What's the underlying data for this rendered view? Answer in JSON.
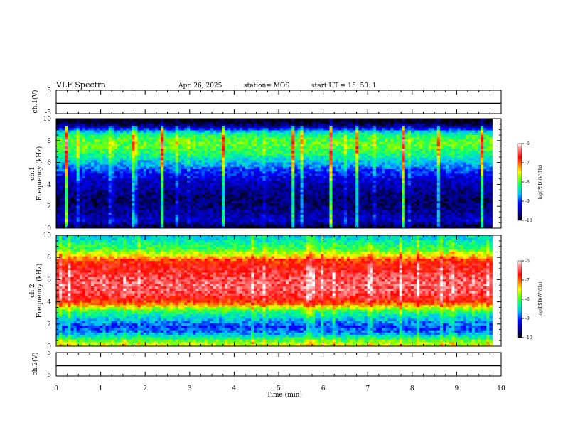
{
  "header": {
    "title": "VLF Spectra",
    "date": "Apr. 26, 2025",
    "station": "station= MOS",
    "start": "start  UT  =   15: 50: 1"
  },
  "colors": {
    "scale": [
      "#000000",
      "#00008b",
      "#0000ff",
      "#00c0ff",
      "#00ff80",
      "#80ff00",
      "#ffff00",
      "#ff8000",
      "#ff0000",
      "#ff8080",
      "#ffffff"
    ]
  },
  "chart_data": [
    {
      "type": "line",
      "ylabel": "ch.1(V)",
      "ylim": [
        -5,
        5
      ],
      "yticks": [
        5,
        -5
      ],
      "series_y": 0,
      "xlim": [
        0,
        10
      ]
    },
    {
      "type": "heatmap",
      "ylabel": "ch.1\nFrequency (kHz)",
      "ylabel_top": "ch.1",
      "ylabel_main": "Frequency (kHz)",
      "ylim": [
        0,
        10
      ],
      "yticks": [
        0,
        2,
        4,
        6,
        8,
        10
      ],
      "xlim": [
        0,
        10
      ],
      "data_end_min": 9.8,
      "profile_khz": [
        0.25,
        0.75,
        1.25,
        1.75,
        2.25,
        2.75,
        3.25,
        3.75,
        4.25,
        4.75,
        5.25,
        5.75,
        6.25,
        6.75,
        7.25,
        7.75,
        8.25,
        8.75,
        9.25,
        9.75
      ],
      "profile_level": [
        -9.8,
        -9.3,
        -9.5,
        -9.6,
        -9.7,
        -9.7,
        -9.6,
        -9.5,
        -9.4,
        -9.2,
        -9.0,
        -8.7,
        -8.5,
        -8.2,
        -8.0,
        -7.9,
        -8.0,
        -8.4,
        -9.4,
        -10.0
      ],
      "colorbar": {
        "label": "log(PSD)(V²/Hz)",
        "range": [
          -10,
          -6
        ],
        "ticks": [
          -6,
          -7,
          -8,
          -9,
          -10
        ]
      }
    },
    {
      "type": "heatmap",
      "ylabel": "ch.2\nFrequency (kHz)",
      "ylabel_top": "ch.2",
      "ylabel_main": "Frequency (kHz)",
      "ylim": [
        0,
        10
      ],
      "yticks": [
        0,
        2,
        4,
        6,
        8,
        10
      ],
      "xlim": [
        0,
        10
      ],
      "data_end_min": 9.8,
      "profile_khz": [
        0.25,
        0.75,
        1.25,
        1.75,
        2.25,
        2.75,
        3.25,
        3.75,
        4.25,
        4.75,
        5.25,
        5.75,
        6.25,
        6.75,
        7.25,
        7.75,
        8.25,
        8.75,
        9.25,
        9.75
      ],
      "profile_level": [
        -7.6,
        -8.2,
        -8.8,
        -9.0,
        -8.7,
        -8.4,
        -8.0,
        -7.2,
        -6.7,
        -6.5,
        -6.4,
        -6.4,
        -6.5,
        -6.6,
        -6.7,
        -6.9,
        -7.5,
        -8.0,
        -8.2,
        -8.5
      ],
      "colorbar": {
        "label": "log(PSD)(V²/Hz)",
        "range": [
          -10,
          -6
        ],
        "ticks": [
          -6,
          -7,
          -8,
          -9,
          -10
        ]
      }
    },
    {
      "type": "line",
      "ylabel": "ch.2(V)",
      "ylim": [
        -5,
        5
      ],
      "yticks": [
        5,
        -5
      ],
      "series_y": 0,
      "xlim": [
        0,
        10
      ],
      "xlabel": "Time (min)",
      "xticks": [
        0,
        1,
        2,
        3,
        4,
        5,
        6,
        7,
        8,
        9,
        10
      ]
    }
  ]
}
